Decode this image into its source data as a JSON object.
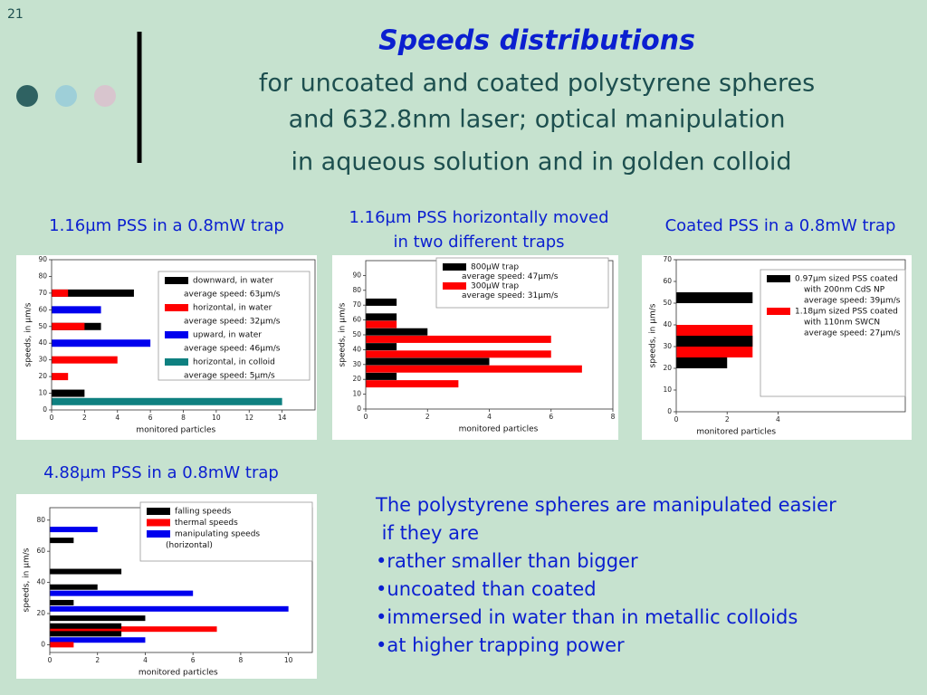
{
  "page_number": "21",
  "title": "Speeds distributions",
  "subtitle": [
    "for uncoated and coated polystyrene spheres",
    "and 632.8nm laser; optical manipulation",
    "in aqueous solution and in golden colloid"
  ],
  "conclusions": [
    "The polystyrene spheres are manipulated easier",
    " if they are",
    "•rather smaller than bigger",
    "•uncoated than coated",
    "•immersed in water than in metallic colloids",
    "•at higher trapping power"
  ],
  "chart_data": [
    {
      "type": "bar",
      "orientation": "horizontal",
      "title": [
        "1.16µm PSS in a 0.8mW trap"
      ],
      "xlabel": "monitored particles",
      "ylabel": "speeds, in µm/s",
      "xlim": [
        0,
        16
      ],
      "xticks": [
        0,
        2,
        4,
        6,
        8,
        10,
        12,
        14
      ],
      "ylim": [
        0,
        90
      ],
      "yticks": [
        0,
        10,
        20,
        30,
        40,
        50,
        60,
        70,
        80,
        90
      ],
      "series": [
        {
          "name": "downward, in water",
          "notes": [
            "average speed: 63µm/s"
          ],
          "color": "#000000",
          "y": [
            70,
            50,
            10
          ],
          "values": [
            5,
            3,
            2
          ]
        },
        {
          "name": "horizontal, in water",
          "notes": [
            "average speed: 32µm/s"
          ],
          "color": "#ff0000",
          "y": [
            70,
            50,
            30,
            20
          ],
          "values": [
            1,
            2,
            4,
            1
          ]
        },
        {
          "name": "upward, in water",
          "notes": [
            "average speed: 46µm/s"
          ],
          "color": "#0000ee",
          "y": [
            60,
            40
          ],
          "values": [
            3,
            6
          ]
        },
        {
          "name": "horizontal, in colloid",
          "notes": [
            "average speed: 5µm/s"
          ],
          "color": "#0e8080",
          "y": [
            5
          ],
          "values": [
            14
          ]
        }
      ]
    },
    {
      "type": "bar",
      "orientation": "horizontal",
      "title": [
        "1.16µm PSS horizontally moved",
        "in two different traps"
      ],
      "xlabel": "monitored particles",
      "ylabel": "speeds, in µm/s",
      "xlim": [
        0,
        8
      ],
      "xticks": [
        0,
        2,
        4,
        6,
        8
      ],
      "ylim": [
        0,
        100
      ],
      "yticks": [
        0,
        10,
        20,
        30,
        40,
        50,
        60,
        70,
        80,
        90
      ],
      "series": [
        {
          "name": "800µW trap",
          "notes": [
            "average speed: 47µm/s"
          ],
          "color": "#000000",
          "y": [
            72,
            62,
            52,
            42,
            32,
            22
          ],
          "values": [
            1,
            1,
            2,
            1,
            4,
            1
          ]
        },
        {
          "name": "300µW trap",
          "notes": [
            "average speed: 31µm/s"
          ],
          "color": "#ff0000",
          "y": [
            57,
            47,
            37,
            27,
            17
          ],
          "values": [
            1,
            6,
            6,
            7,
            3
          ]
        }
      ]
    },
    {
      "type": "bar",
      "orientation": "horizontal",
      "title": [
        "Coated PSS in a 0.8mW trap"
      ],
      "xlabel": "monitored particles",
      "ylabel": "speeds, in µm/s",
      "xlim": [
        0,
        9
      ],
      "xticks": [
        0,
        2,
        4
      ],
      "ylim": [
        0,
        70
      ],
      "yticks": [
        0,
        10,
        20,
        30,
        40,
        50,
        60,
        70
      ],
      "series": [
        {
          "name": "0.97µm sized PSS coated",
          "notes": [
            "with 200nm CdS NP",
            "average speed: 39µm/s"
          ],
          "color": "#000000",
          "y": [
            52.5,
            32.5,
            22.5
          ],
          "values": [
            3,
            3,
            2
          ]
        },
        {
          "name": "1.18µm sized PSS coated",
          "notes": [
            "with 110nm SWCN",
            "average speed: 27µm/s"
          ],
          "color": "#ff0000",
          "y": [
            37.5,
            32.5,
            27.5
          ],
          "values": [
            3,
            3,
            3
          ]
        }
      ]
    },
    {
      "type": "bar",
      "orientation": "horizontal",
      "title": [
        "4.88µm PSS in a 0.8mW trap"
      ],
      "xlabel": "monitored particles",
      "ylabel": "speeds, in µm/s",
      "xlim": [
        0,
        11
      ],
      "xticks": [
        0,
        2,
        4,
        6,
        8,
        10
      ],
      "ylim": [
        -5,
        88
      ],
      "yticks": [
        0,
        20,
        40,
        60,
        80
      ],
      "series": [
        {
          "name": "falling speeds",
          "color": "#000000",
          "y": [
            67,
            47,
            37,
            27,
            17,
            12,
            7
          ],
          "values": [
            1,
            3,
            2,
            1,
            4,
            3,
            3
          ]
        },
        {
          "name": "thermal speeds",
          "color": "#ff0000",
          "y": [
            10,
            0
          ],
          "values": [
            7,
            1
          ]
        },
        {
          "name": "manipulating speeds",
          "notes": [
            "(horizontal)"
          ],
          "color": "#0000ee",
          "y": [
            74,
            33,
            23,
            3
          ],
          "values": [
            2,
            6,
            10,
            4
          ]
        }
      ]
    }
  ]
}
